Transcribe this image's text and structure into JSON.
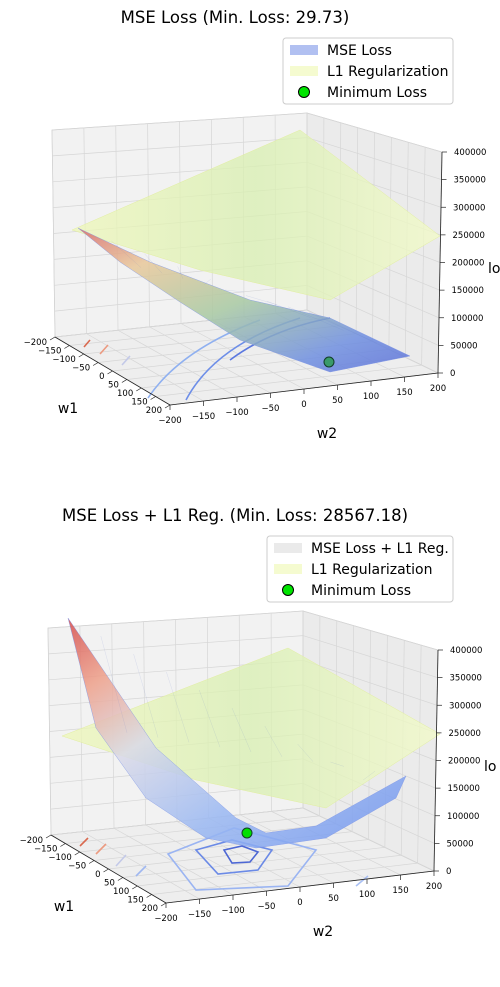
{
  "chart_data": [
    {
      "type": "surface3d",
      "title": "MSE Loss (Min. Loss: 29.73)",
      "xlabel": "w1",
      "ylabel": "w2",
      "zlabel": "lo",
      "x_ticks": [
        "−200",
        "−150",
        "−100",
        "−50",
        "0",
        "50",
        "100",
        "150",
        "200"
      ],
      "y_ticks": [
        "−200",
        "−150",
        "−100",
        "−50",
        "0",
        "50",
        "100",
        "150",
        "200"
      ],
      "z_ticks": [
        "0",
        "50000",
        "100000",
        "150000",
        "200000",
        "250000",
        "300000",
        "350000",
        "400000"
      ],
      "xlim": [
        -200,
        200
      ],
      "ylim": [
        -200,
        200
      ],
      "zlim": [
        0,
        400000
      ],
      "legend_position": "top-right",
      "series": [
        {
          "name": "MSE Loss",
          "color": "#a9b9ef",
          "kind": "surface"
        },
        {
          "name": "L1 Regularization",
          "color": "#f5fbd0",
          "kind": "surface"
        },
        {
          "name": "Minimum Loss",
          "color": "#00e400",
          "kind": "point",
          "x": 100,
          "y": 50,
          "z": 29.73
        }
      ],
      "min_loss": 29.73
    },
    {
      "type": "surface3d",
      "title": "MSE Loss + L1 Reg. (Min. Loss: 28567.18)",
      "xlabel": "w1",
      "ylabel": "w2",
      "zlabel": "lo",
      "x_ticks": [
        "−200",
        "−150",
        "−100",
        "−50",
        "0",
        "50",
        "100",
        "150",
        "200"
      ],
      "y_ticks": [
        "−200",
        "−150",
        "−100",
        "−50",
        "0",
        "50",
        "100",
        "150",
        "200"
      ],
      "z_ticks": [
        "0",
        "50000",
        "100000",
        "150000",
        "200000",
        "250000",
        "300000",
        "350000",
        "400000"
      ],
      "xlim": [
        -200,
        200
      ],
      "ylim": [
        -200,
        200
      ],
      "zlim": [
        0,
        400000
      ],
      "legend_position": "top-right",
      "series": [
        {
          "name": "MSE Loss + L1 Reg.",
          "color": "#e8e8e8",
          "kind": "surface"
        },
        {
          "name": "L1 Regularization",
          "color": "#f5fbd0",
          "kind": "surface"
        },
        {
          "name": "Minimum Loss",
          "color": "#00e400",
          "kind": "point",
          "x": 0,
          "y": 0,
          "z": 28567.18
        }
      ],
      "min_loss": 28567.18
    }
  ]
}
